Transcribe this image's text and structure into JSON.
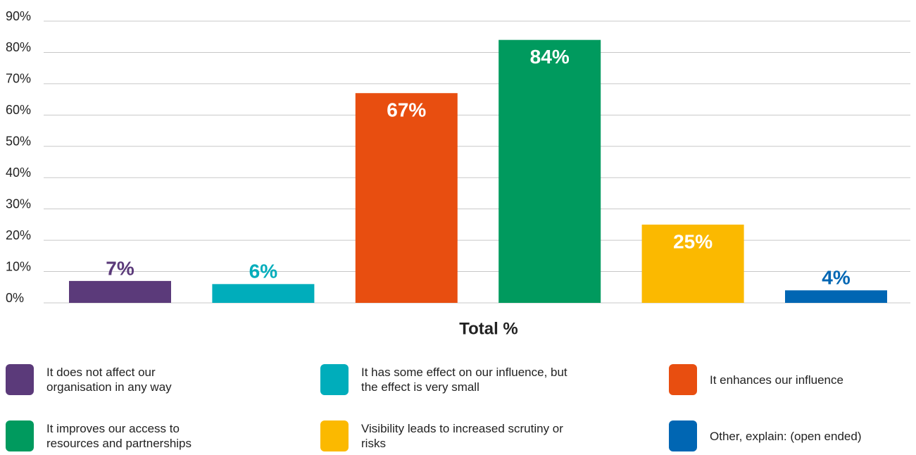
{
  "chart_data": {
    "type": "bar",
    "categories": [
      "Total %"
    ],
    "series": [
      {
        "name": "It does not affect our organisation in any way",
        "color": "#5b3a7a",
        "values": [
          7
        ],
        "value_labels": [
          "7%"
        ]
      },
      {
        "name": "It has some effect on our influence, but the effect is very small",
        "color": "#00adbb",
        "values": [
          6
        ],
        "value_labels": [
          "6%"
        ]
      },
      {
        "name": "It enhances our influence",
        "color": "#e84e10",
        "values": [
          67
        ],
        "value_labels": [
          "67%"
        ]
      },
      {
        "name": "It improves our access to resources and partnerships",
        "color": "#009a5e",
        "values": [
          84
        ],
        "value_labels": [
          "84%"
        ]
      },
      {
        "name": "Visibility leads to increased scrutiny or risks",
        "color": "#fbb900",
        "values": [
          25
        ],
        "value_labels": [
          "25%"
        ]
      },
      {
        "name": "Other, explain: (open ended)",
        "color": "#0066b3",
        "values": [
          4
        ],
        "value_labels": [
          "4%"
        ]
      }
    ],
    "ylim": [
      0,
      90
    ],
    "yticks": [
      {
        "value": 0,
        "label": "0%"
      },
      {
        "value": 10,
        "label": "10%"
      },
      {
        "value": 20,
        "label": "20%"
      },
      {
        "value": 30,
        "label": "30%"
      },
      {
        "value": 40,
        "label": "40%"
      },
      {
        "value": 50,
        "label": "50%"
      },
      {
        "value": 60,
        "label": "60%"
      },
      {
        "value": 70,
        "label": "70%"
      },
      {
        "value": 80,
        "label": "80%"
      },
      {
        "value": 90,
        "label": "90%"
      }
    ],
    "grid": true,
    "legend": "bottom"
  }
}
